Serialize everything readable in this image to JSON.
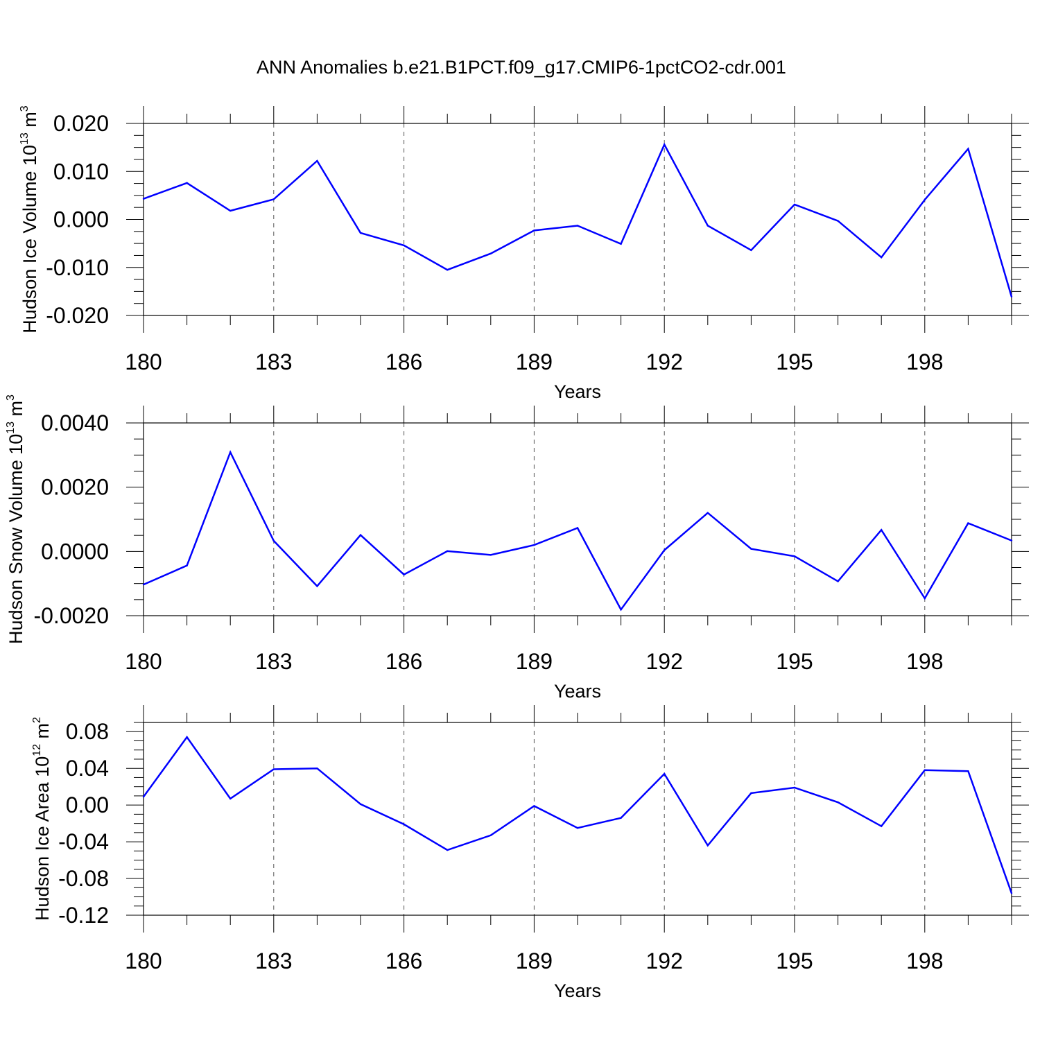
{
  "title": "ANN Anomalies b.e21.B1PCT.f09_g17.CMIP6-1pctCO2-cdr.001",
  "colors": {
    "line": "#0000ff",
    "axes": "#000000",
    "grid": "#555555"
  },
  "chart_data": [
    {
      "type": "line",
      "ylabel_parts": [
        "Hudson Ice Volume 10",
        "13",
        " m",
        "3"
      ],
      "xlabel": "Years",
      "ylim": [
        -0.02,
        0.02
      ],
      "yticks": [
        -0.02,
        -0.01,
        0.0,
        0.01,
        0.02
      ],
      "yticklabels": [
        "-0.020",
        "-0.010",
        "0.000",
        "0.010",
        "0.020"
      ],
      "xlim": [
        180,
        200
      ],
      "xticks": [
        180,
        183,
        186,
        189,
        192,
        195,
        198
      ],
      "xticklabels": [
        "180",
        "183",
        "186",
        "189",
        "192",
        "195",
        "198"
      ],
      "grid": "vertical dashed at major x ticks",
      "series": [
        {
          "x": [
            180,
            181,
            182,
            183,
            184,
            185,
            186,
            187,
            188,
            189,
            190,
            191,
            192,
            193,
            194,
            195,
            196,
            197,
            198,
            199,
            200
          ],
          "values": [
            0.0043,
            0.0076,
            0.0018,
            0.0042,
            0.0122,
            -0.0028,
            -0.0054,
            -0.0105,
            -0.0071,
            -0.0023,
            -0.0013,
            -0.0051,
            0.0156,
            -0.0013,
            -0.0064,
            0.0031,
            -0.0003,
            -0.0079,
            0.0041,
            0.0147,
            -0.0161
          ]
        }
      ]
    },
    {
      "type": "line",
      "ylabel_parts": [
        "Hudson Snow Volume 10",
        "13",
        " m",
        "3"
      ],
      "xlabel": "Years",
      "ylim": [
        -0.002,
        0.004
      ],
      "yticks": [
        -0.002,
        0.0,
        0.002,
        0.004
      ],
      "yticklabels": [
        "-0.0020",
        "0.0000",
        "0.0020",
        "0.0040"
      ],
      "xlim": [
        180,
        200
      ],
      "xticks": [
        180,
        183,
        186,
        189,
        192,
        195,
        198
      ],
      "xticklabels": [
        "180",
        "183",
        "186",
        "189",
        "192",
        "195",
        "198"
      ],
      "grid": "vertical dashed at major x ticks",
      "series": [
        {
          "x": [
            180,
            181,
            182,
            183,
            184,
            185,
            186,
            187,
            188,
            189,
            190,
            191,
            192,
            193,
            194,
            195,
            196,
            197,
            198,
            199,
            200
          ],
          "values": [
            -0.00103,
            -0.00044,
            0.00309,
            0.00033,
            -0.00108,
            0.00051,
            -0.00072,
            1e-05,
            -0.00011,
            0.0002,
            0.00073,
            -0.00181,
            4e-05,
            0.0012,
            8e-05,
            -0.00015,
            -0.00093,
            0.00067,
            -0.00146,
            0.00088,
            0.00034
          ]
        }
      ]
    },
    {
      "type": "line",
      "ylabel_parts": [
        "Hudson Ice Area 10",
        "12",
        " m",
        "2"
      ],
      "xlabel": "Years",
      "ylim": [
        -0.12,
        0.09
      ],
      "yticks": [
        -0.12,
        -0.08,
        -0.04,
        0.0,
        0.04,
        0.08
      ],
      "yticklabels": [
        "-0.12",
        "-0.08",
        "-0.04",
        "0.00",
        "0.04",
        "0.08"
      ],
      "xlim": [
        180,
        200
      ],
      "xticks": [
        180,
        183,
        186,
        189,
        192,
        195,
        198
      ],
      "xticklabels": [
        "180",
        "183",
        "186",
        "189",
        "192",
        "195",
        "198"
      ],
      "grid": "vertical dashed at major x ticks",
      "series": [
        {
          "x": [
            180,
            181,
            182,
            183,
            184,
            185,
            186,
            187,
            188,
            189,
            190,
            191,
            192,
            193,
            194,
            195,
            196,
            197,
            198,
            199,
            200
          ],
          "values": [
            0.009,
            0.074,
            0.007,
            0.039,
            0.04,
            0.001,
            -0.021,
            -0.049,
            -0.033,
            -0.001,
            -0.025,
            -0.014,
            0.034,
            -0.044,
            0.013,
            0.019,
            0.003,
            -0.023,
            0.038,
            0.037,
            -0.096
          ]
        }
      ]
    }
  ]
}
